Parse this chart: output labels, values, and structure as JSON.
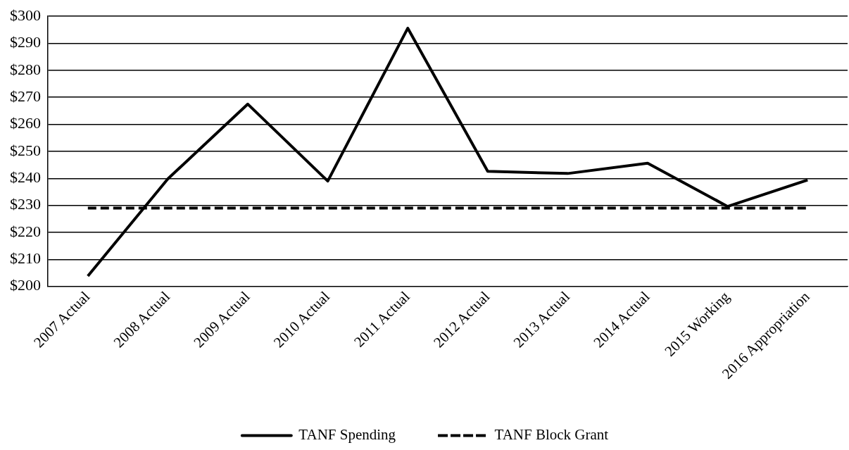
{
  "chart_data": {
    "type": "line",
    "categories": [
      "2007 Actual",
      "2008 Actual",
      "2009 Actual",
      "2010 Actual",
      "2011 Actual",
      "2012 Actual",
      "2013 Actual",
      "2014 Actual",
      "2015 Working",
      "2016 Appropriation"
    ],
    "series": [
      {
        "name": "TANF Spending",
        "color": "#000000",
        "line_style": "solid",
        "values": [
          203.8,
          239.8,
          267.5,
          239,
          295.6,
          242.6,
          241.8,
          245.6,
          229.6,
          239.4
        ]
      },
      {
        "name": "TANF Block Grant",
        "color": "#000000",
        "line_style": "dashed",
        "values": [
          229,
          229,
          229,
          229,
          229,
          229,
          229,
          229,
          229,
          229
        ]
      }
    ],
    "ylim": [
      200,
      300
    ],
    "yticks": [
      {
        "value": 200,
        "label": "$200"
      },
      {
        "value": 210,
        "label": "$210"
      },
      {
        "value": 220,
        "label": "$220"
      },
      {
        "value": 230,
        "label": "$230"
      },
      {
        "value": 240,
        "label": "$240"
      },
      {
        "value": 250,
        "label": "$250"
      },
      {
        "value": 260,
        "label": "$260"
      },
      {
        "value": 270,
        "label": "$270"
      },
      {
        "value": 280,
        "label": "$280"
      },
      {
        "value": 290,
        "label": "$290"
      },
      {
        "value": 300,
        "label": "$300"
      }
    ],
    "grid": "y",
    "legend": "bottom",
    "marker": "none"
  }
}
